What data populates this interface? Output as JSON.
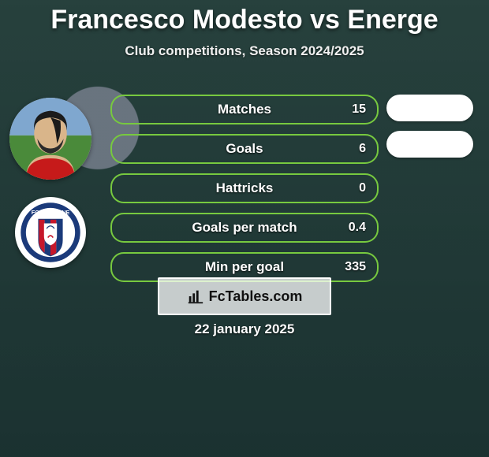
{
  "title": {
    "player1": "Francesco Modesto",
    "vs": "vs",
    "player2": "Energe"
  },
  "subtitle": "Club competitions, Season 2024/2025",
  "colors": {
    "pill_border": "#77c93f",
    "pill2_bg": "#ffffff",
    "text": "#ffffff",
    "overlay": "rgba(10,30,50,0.55)"
  },
  "stats": [
    {
      "label": "Matches",
      "p1": "15"
    },
    {
      "label": "Goals",
      "p1": "6"
    },
    {
      "label": "Hattricks",
      "p1": "0"
    },
    {
      "label": "Goals per match",
      "p1": "0.4"
    },
    {
      "label": "Min per goal",
      "p1": "335"
    }
  ],
  "right_pills_count": 2,
  "watermark": {
    "icon": "bar-chart-icon",
    "text_before": "Fc",
    "text_after": "Tables.com"
  },
  "date": "22 january 2025",
  "club_badge": {
    "name": "FC Crotone",
    "ring_color": "#1b3a7a",
    "stripes": [
      "#c6172a",
      "#1b3a7a"
    ]
  }
}
